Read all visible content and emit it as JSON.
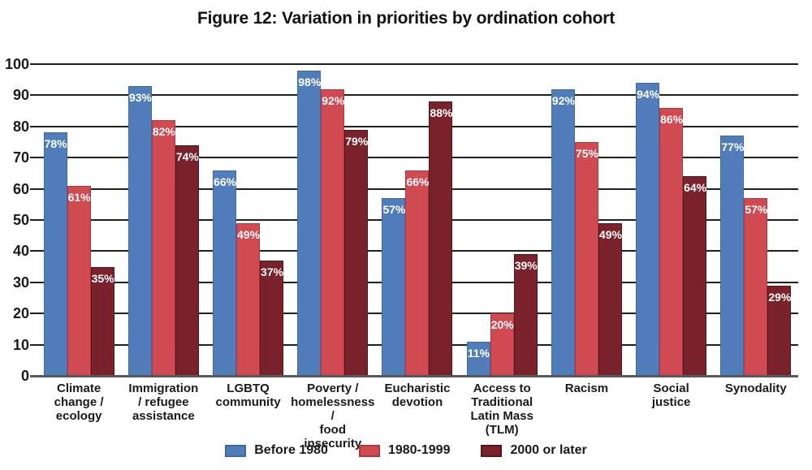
{
  "title": "Figure 12: Variation in priorities by ordination cohort",
  "chart_data": {
    "type": "bar",
    "title": "Figure 12: Variation in priorities by ordination cohort",
    "xlabel": "",
    "ylabel": "",
    "ylim": [
      0,
      100
    ],
    "y_ticks": [
      0,
      10,
      20,
      30,
      40,
      50,
      60,
      70,
      80,
      90,
      100
    ],
    "grid": true,
    "legend_position": "bottom",
    "value_suffix": "%",
    "categories": [
      {
        "label": "Climate change / ecology",
        "lines": [
          "Climate",
          "change /",
          "ecology"
        ]
      },
      {
        "label": "Immigration / refugee assistance",
        "lines": [
          "Immigration",
          "/ refugee",
          "assistance"
        ]
      },
      {
        "label": "LGBTQ community",
        "lines": [
          "LGBTQ",
          "community"
        ]
      },
      {
        "label": "Poverty / homelessness / food insecurity",
        "lines": [
          "Poverty /",
          "homelessness /",
          "food insecurity"
        ]
      },
      {
        "label": "Eucharistic devotion",
        "lines": [
          "Eucharistic",
          "devotion"
        ]
      },
      {
        "label": "Access to Traditional Latin Mass (TLM)",
        "lines": [
          "Access to",
          "Traditional",
          "Latin Mass",
          "(TLM)"
        ]
      },
      {
        "label": "Racism",
        "lines": [
          "Racism"
        ]
      },
      {
        "label": "Social justice",
        "lines": [
          "Social",
          "justice"
        ]
      },
      {
        "label": "Synodality",
        "lines": [
          "Synodality"
        ]
      }
    ],
    "series": [
      {
        "name": "Before 1980",
        "color": "#517EBB",
        "border_color": "#3E68A4",
        "values": [
          78,
          93,
          66,
          98,
          57,
          11,
          92,
          94,
          77
        ]
      },
      {
        "name": "1980-1999",
        "color": "#D04A52",
        "border_color": "#AF3740",
        "values": [
          61,
          82,
          49,
          92,
          66,
          20,
          75,
          86,
          57
        ]
      },
      {
        "name": "2000 or later",
        "color": "#7A222C",
        "border_color": "#55141C",
        "values": [
          35,
          74,
          37,
          79,
          88,
          39,
          49,
          64,
          29
        ]
      }
    ],
    "colors": {
      "gridline": "#1f1f1f",
      "axis_line": "#58595b",
      "text": "#1a1a1a",
      "value_label": "#ffffff"
    }
  }
}
